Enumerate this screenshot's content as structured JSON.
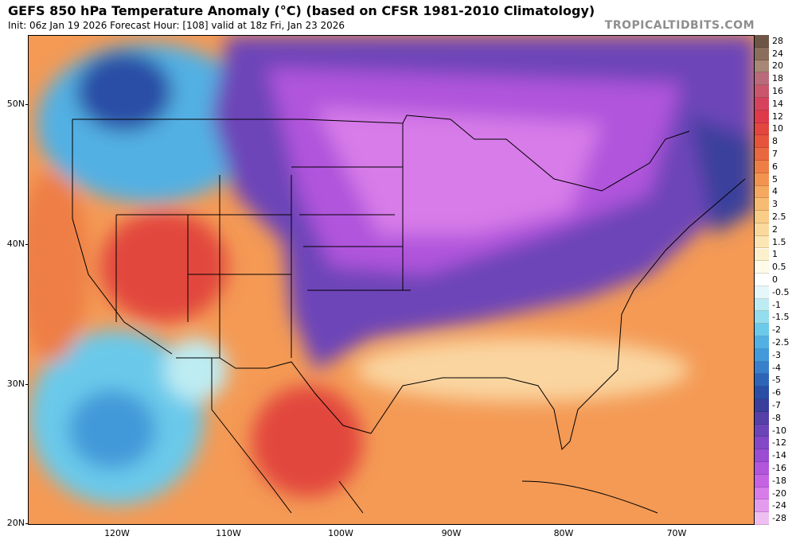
{
  "header": {
    "title": "GEFS 850 hPa Temperature Anomaly (°C) (based on CFSR 1981-2010 Climatology)",
    "subtitle": "Init: 06z Jan 19 2026   Forecast Hour: [108]   valid at 18z Fri, Jan 23 2026",
    "watermark": "TROPICALTIDBITS.COM"
  },
  "axes": {
    "lat_labels": [
      "50N",
      "40N",
      "30N",
      "20N"
    ],
    "lon_labels": [
      "120W",
      "110W",
      "100W",
      "90W",
      "80W",
      "70W"
    ]
  },
  "colorbar": {
    "labels": [
      "28",
      "24",
      "20",
      "18",
      "16",
      "14",
      "12",
      "10",
      "8",
      "7",
      "6",
      "5",
      "4",
      "3",
      "2.5",
      "2",
      "1.5",
      "1",
      "0.5",
      "0",
      "-0.5",
      "-1",
      "-1.5",
      "-2",
      "-2.5",
      "-3",
      "-4",
      "-5",
      "-6",
      "-7",
      "-8",
      "-10",
      "-12",
      "-14",
      "-16",
      "-18",
      "-20",
      "-24",
      "-28"
    ],
    "colors": [
      "#6e5646",
      "#8b6e5b",
      "#a88777",
      "#b96a7b",
      "#c9566a",
      "#d6425d",
      "#de3a4a",
      "#e2463e",
      "#e6543c",
      "#e96840",
      "#ee7e45",
      "#f29450",
      "#f5a860",
      "#f7bb73",
      "#f9cc88",
      "#fbd99c",
      "#fce6b4",
      "#fdf0cc",
      "#fefbe8",
      "#ffffff",
      "#e6f7fa",
      "#bdecf3",
      "#93ddee",
      "#6bc9ea",
      "#52b0e3",
      "#4399d9",
      "#3a7fcc",
      "#2e64b8",
      "#2a4ea5",
      "#3a3f9c",
      "#5540a8",
      "#6d44b8",
      "#8447c7",
      "#9a4cd3",
      "#b055dc",
      "#c563e3",
      "#d77ce8",
      "#e39ced",
      "#efbff2"
    ]
  }
}
